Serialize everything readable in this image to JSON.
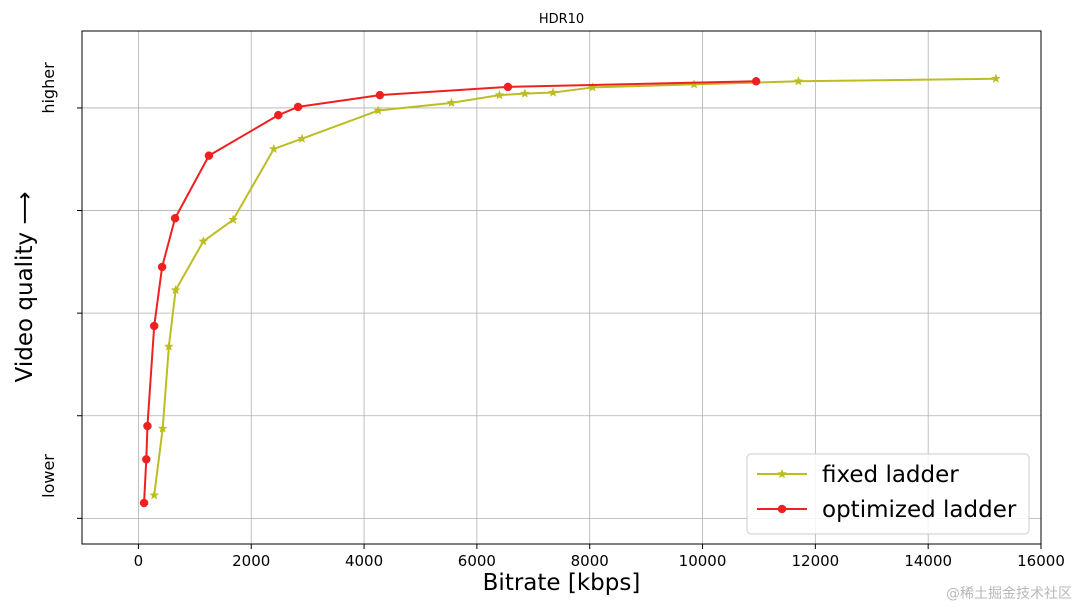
{
  "chart_data": {
    "type": "line",
    "title": "HDR10",
    "xlabel": "Bitrate [kbps]",
    "ylabel": "Video quality ⟶",
    "xlim": [
      -1000,
      16000
    ],
    "ylim": [
      0,
      100
    ],
    "xticks": [
      0,
      2000,
      4000,
      6000,
      8000,
      10000,
      12000,
      14000,
      16000
    ],
    "yticks": [
      5,
      25,
      45,
      65,
      85
    ],
    "ytick_labels": {
      "lower": "lower",
      "higher": "higher"
    },
    "grid": true,
    "legend_position": "bottom-right",
    "series": [
      {
        "name": "fixed ladder",
        "color": "#bcbd22",
        "marker": "star",
        "points": [
          [
            280,
            9.5
          ],
          [
            430,
            22.5
          ],
          [
            540,
            38.5
          ],
          [
            660,
            49.5
          ],
          [
            1150,
            59
          ],
          [
            1680,
            63.2
          ],
          [
            2400,
            77
          ],
          [
            2900,
            79
          ],
          [
            4250,
            84.5
          ],
          [
            5550,
            86
          ],
          [
            6400,
            87.5
          ],
          [
            6850,
            87.8
          ],
          [
            7350,
            88
          ],
          [
            8050,
            89
          ],
          [
            9850,
            89.6
          ],
          [
            11700,
            90.2
          ],
          [
            15200,
            90.7
          ]
        ]
      },
      {
        "name": "optimized ladder",
        "color": "#ef2020",
        "marker": "circle",
        "points": [
          [
            100,
            8
          ],
          [
            140,
            16.5
          ],
          [
            160,
            23
          ],
          [
            280,
            42.5
          ],
          [
            420,
            54
          ],
          [
            650,
            63.5
          ],
          [
            1250,
            75.7
          ],
          [
            2480,
            83.6
          ],
          [
            2830,
            85.2
          ],
          [
            4280,
            87.5
          ],
          [
            6550,
            89.1
          ],
          [
            10950,
            90.2
          ]
        ]
      }
    ]
  },
  "watermark": "@稀土掘金技术社区"
}
